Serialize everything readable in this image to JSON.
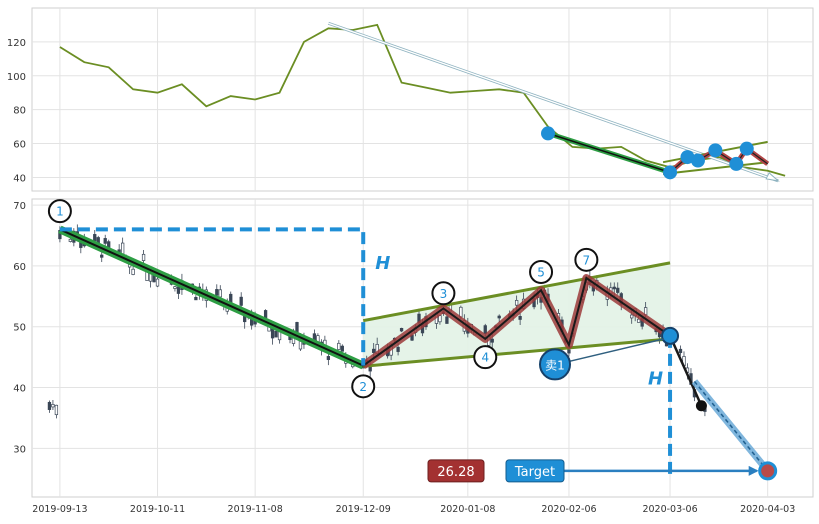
{
  "chart_data": [
    {
      "type": "line",
      "panel": "overview",
      "x": [
        "2019-09-13",
        "2019-09-20",
        "2019-09-27",
        "2019-10-04",
        "2019-10-11",
        "2019-10-18",
        "2019-10-25",
        "2019-11-01",
        "2019-11-08",
        "2019-11-15",
        "2019-11-22",
        "2019-11-29",
        "2019-12-06",
        "2019-12-13",
        "2019-12-20",
        "2019-12-27",
        "2020-01-03",
        "2020-01-10",
        "2020-01-17",
        "2020-01-24",
        "2020-01-31",
        "2020-02-07",
        "2020-02-14",
        "2020-02-21",
        "2020-02-28",
        "2020-03-06",
        "2020-03-13",
        "2020-03-20",
        "2020-03-27",
        "2020-04-03",
        "2020-04-08"
      ],
      "series": [
        {
          "values": [
            117,
            108,
            105,
            92,
            90,
            95,
            82,
            88,
            86,
            90,
            120,
            128,
            127,
            130,
            96,
            93,
            90,
            91,
            92,
            90,
            70,
            58,
            57,
            58,
            50,
            46,
            50,
            52,
            46,
            44,
            41
          ],
          "color": "#6b8e23"
        }
      ],
      "ylim": [
        32,
        140
      ],
      "yticks": [
        40,
        60,
        80,
        100,
        120
      ],
      "grid": true,
      "annotations": {
        "markers": [
          {
            "x": "2020-01-31",
            "y": 66
          },
          {
            "x": "2020-03-06",
            "y": 43
          },
          {
            "x": "2020-03-11",
            "y": 52
          },
          {
            "x": "2020-03-14",
            "y": 50
          },
          {
            "x": "2020-03-19",
            "y": 56
          },
          {
            "x": "2020-03-25",
            "y": 48
          },
          {
            "x": "2020-03-28",
            "y": 57
          }
        ],
        "trend_arrow": {
          "from": [
            "2019-11-29",
            131
          ],
          "to": [
            "2020-04-06",
            38
          ]
        }
      }
    },
    {
      "type": "candlestick",
      "panel": "pattern",
      "x_ticks": [
        "2019-09-13",
        "2019-10-11",
        "2019-11-08",
        "2019-12-09",
        "2020-01-08",
        "2020-02-06",
        "2020-03-06",
        "2020-04-03"
      ],
      "ylim": [
        22,
        71
      ],
      "yticks": [
        30,
        40,
        50,
        60,
        70
      ],
      "grid": true,
      "price_path": [
        {
          "x": "2019-09-13",
          "y": 66
        },
        {
          "x": "2019-12-09",
          "y": 43.6
        },
        {
          "x": "2020-01-01",
          "y": 53
        },
        {
          "x": "2020-01-13",
          "y": 48
        },
        {
          "x": "2020-01-29",
          "y": 56
        },
        {
          "x": "2020-02-06",
          "y": 47
        },
        {
          "x": "2020-02-11",
          "y": 58
        },
        {
          "x": "2020-03-06",
          "y": 48.5
        },
        {
          "x": "2020-03-15",
          "y": 37
        }
      ],
      "wave_labels": [
        "1",
        "2",
        "3",
        "4",
        "5",
        "7"
      ],
      "channel": {
        "upper": {
          "from": [
            "2019-12-09",
            51
          ],
          "to": [
            "2020-03-06",
            60.5
          ]
        },
        "lower": {
          "from": [
            "2019-12-09",
            43.5
          ],
          "to": [
            "2020-03-06",
            48
          ]
        }
      },
      "height_label": "H",
      "sell_marker": {
        "label": "卖1",
        "x": "2020-03-06",
        "y": 48.5
      },
      "target": {
        "label": "Target",
        "value": "26.28",
        "x": "2020-04-03",
        "y": 26.3
      },
      "projection_start": {
        "x": "2020-03-13",
        "y": 41
      }
    }
  ]
}
